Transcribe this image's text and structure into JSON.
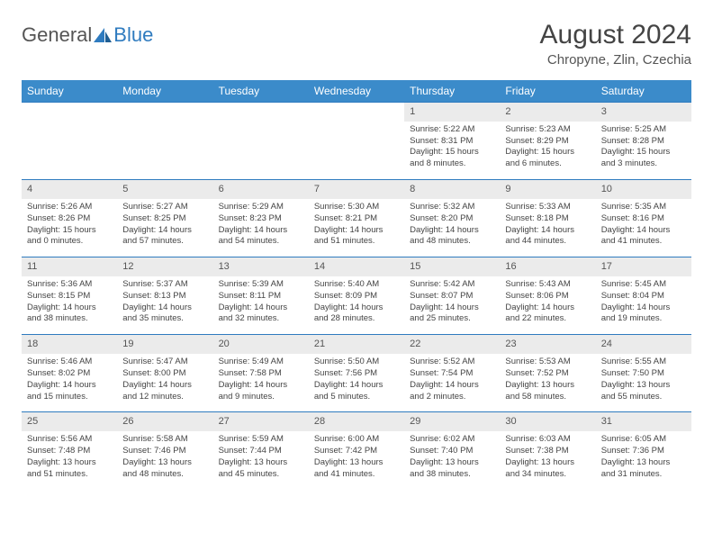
{
  "logo": {
    "text1": "General",
    "text2": "Blue"
  },
  "title": "August 2024",
  "location": "Chropyne, Zlin, Czechia",
  "colors": {
    "header_bg": "#3b8bca",
    "header_text": "#ffffff",
    "daynum_bg": "#ebebeb",
    "border": "#2f7bbf",
    "text": "#444444"
  },
  "day_headers": [
    "Sunday",
    "Monday",
    "Tuesday",
    "Wednesday",
    "Thursday",
    "Friday",
    "Saturday"
  ],
  "weeks": [
    [
      null,
      null,
      null,
      null,
      {
        "n": "1",
        "sr": "5:22 AM",
        "ss": "8:31 PM",
        "dl": "15 hours and 8 minutes."
      },
      {
        "n": "2",
        "sr": "5:23 AM",
        "ss": "8:29 PM",
        "dl": "15 hours and 6 minutes."
      },
      {
        "n": "3",
        "sr": "5:25 AM",
        "ss": "8:28 PM",
        "dl": "15 hours and 3 minutes."
      }
    ],
    [
      {
        "n": "4",
        "sr": "5:26 AM",
        "ss": "8:26 PM",
        "dl": "15 hours and 0 minutes."
      },
      {
        "n": "5",
        "sr": "5:27 AM",
        "ss": "8:25 PM",
        "dl": "14 hours and 57 minutes."
      },
      {
        "n": "6",
        "sr": "5:29 AM",
        "ss": "8:23 PM",
        "dl": "14 hours and 54 minutes."
      },
      {
        "n": "7",
        "sr": "5:30 AM",
        "ss": "8:21 PM",
        "dl": "14 hours and 51 minutes."
      },
      {
        "n": "8",
        "sr": "5:32 AM",
        "ss": "8:20 PM",
        "dl": "14 hours and 48 minutes."
      },
      {
        "n": "9",
        "sr": "5:33 AM",
        "ss": "8:18 PM",
        "dl": "14 hours and 44 minutes."
      },
      {
        "n": "10",
        "sr": "5:35 AM",
        "ss": "8:16 PM",
        "dl": "14 hours and 41 minutes."
      }
    ],
    [
      {
        "n": "11",
        "sr": "5:36 AM",
        "ss": "8:15 PM",
        "dl": "14 hours and 38 minutes."
      },
      {
        "n": "12",
        "sr": "5:37 AM",
        "ss": "8:13 PM",
        "dl": "14 hours and 35 minutes."
      },
      {
        "n": "13",
        "sr": "5:39 AM",
        "ss": "8:11 PM",
        "dl": "14 hours and 32 minutes."
      },
      {
        "n": "14",
        "sr": "5:40 AM",
        "ss": "8:09 PM",
        "dl": "14 hours and 28 minutes."
      },
      {
        "n": "15",
        "sr": "5:42 AM",
        "ss": "8:07 PM",
        "dl": "14 hours and 25 minutes."
      },
      {
        "n": "16",
        "sr": "5:43 AM",
        "ss": "8:06 PM",
        "dl": "14 hours and 22 minutes."
      },
      {
        "n": "17",
        "sr": "5:45 AM",
        "ss": "8:04 PM",
        "dl": "14 hours and 19 minutes."
      }
    ],
    [
      {
        "n": "18",
        "sr": "5:46 AM",
        "ss": "8:02 PM",
        "dl": "14 hours and 15 minutes."
      },
      {
        "n": "19",
        "sr": "5:47 AM",
        "ss": "8:00 PM",
        "dl": "14 hours and 12 minutes."
      },
      {
        "n": "20",
        "sr": "5:49 AM",
        "ss": "7:58 PM",
        "dl": "14 hours and 9 minutes."
      },
      {
        "n": "21",
        "sr": "5:50 AM",
        "ss": "7:56 PM",
        "dl": "14 hours and 5 minutes."
      },
      {
        "n": "22",
        "sr": "5:52 AM",
        "ss": "7:54 PM",
        "dl": "14 hours and 2 minutes."
      },
      {
        "n": "23",
        "sr": "5:53 AM",
        "ss": "7:52 PM",
        "dl": "13 hours and 58 minutes."
      },
      {
        "n": "24",
        "sr": "5:55 AM",
        "ss": "7:50 PM",
        "dl": "13 hours and 55 minutes."
      }
    ],
    [
      {
        "n": "25",
        "sr": "5:56 AM",
        "ss": "7:48 PM",
        "dl": "13 hours and 51 minutes."
      },
      {
        "n": "26",
        "sr": "5:58 AM",
        "ss": "7:46 PM",
        "dl": "13 hours and 48 minutes."
      },
      {
        "n": "27",
        "sr": "5:59 AM",
        "ss": "7:44 PM",
        "dl": "13 hours and 45 minutes."
      },
      {
        "n": "28",
        "sr": "6:00 AM",
        "ss": "7:42 PM",
        "dl": "13 hours and 41 minutes."
      },
      {
        "n": "29",
        "sr": "6:02 AM",
        "ss": "7:40 PM",
        "dl": "13 hours and 38 minutes."
      },
      {
        "n": "30",
        "sr": "6:03 AM",
        "ss": "7:38 PM",
        "dl": "13 hours and 34 minutes."
      },
      {
        "n": "31",
        "sr": "6:05 AM",
        "ss": "7:36 PM",
        "dl": "13 hours and 31 minutes."
      }
    ]
  ],
  "labels": {
    "sunrise": "Sunrise:",
    "sunset": "Sunset:",
    "daylight": "Daylight:"
  }
}
